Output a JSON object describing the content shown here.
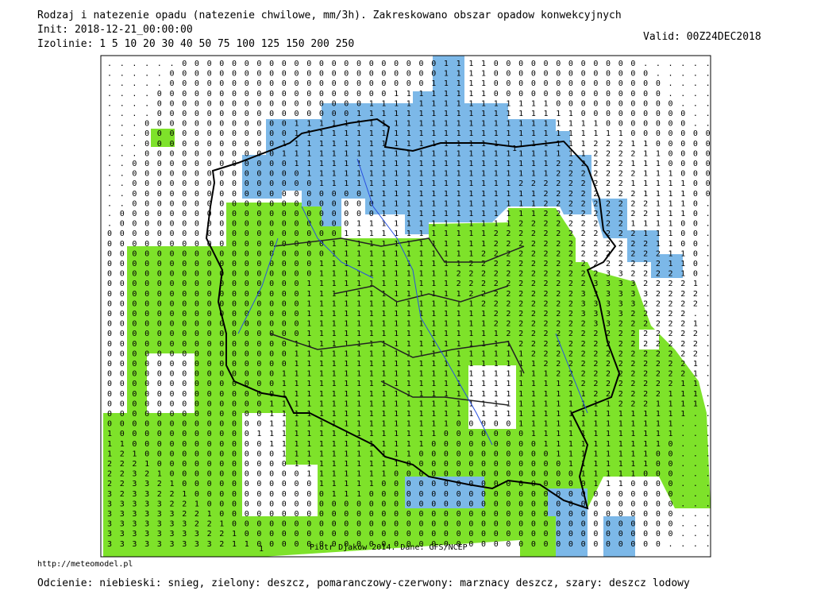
{
  "header": {
    "title": "Rodzaj i natezenie opadu (natezenie chwilowe, mm/3h). Zakreskowano obszar opadow konwekcyjnych",
    "init": "Init: 2018-12-21_00:00:00",
    "isolines": "Izolinie:  1 5 10 20 30 40 50 75 100 125 150 200 250",
    "valid": "Valid: 00Z24DEC2018"
  },
  "map": {
    "credit": "Piotr Djakow 2014. Dane: GFS/NCEP",
    "contour_labels": [
      "1",
      "1"
    ],
    "grid_rows": [
      "......0000000000000000000001111000000000000......",
      ".....000000000000000000000011110000000000000.....",
      ".....0000000000000000000001111100000000000000....",
      "....00000000000000000001111111100000000000000....",
      "....000000000000000001111111111111110000000000...",
      "....0000000000000000111111111111111111000000000..",
      "...00000000000011111111111111111111111110000000..",
      "...0000000000001111111111111111111111111110000000",
      "...0000000000011111111111111111111111112221100000",
      "...0000000000011111111111111111111111112222110000",
      "..00000000000001111111111111111111112222221110000",
      "..00000000000000111111111111111111112222222111000",
      "..00000000000000011111111111111112222222221111100",
      "..00000000000000000001111111111111122222222111100",
      "..0000000000000000000011111111111112222222221110.",
      ".00000000000000000000011111111111112222222221110.",
      ".00000000000000000001111111111111222222222111100.",
      "000000000000000000011111111111122222222222211100.",
      "000000000000000000111111111111122222222222221100.",
      "000000000000000000111111111111222222222222222110.",
      "000000000000000001111111111112222222222222222110.",
      "000000000000000001111111111122222222222233222210.",
      "000000000000000011111111111122222222222333322221.",
      "000000000000000011111111111112222222223333332222.",
      "000000000000000011111111111111222222223333322222.",
      "00000000000000001111111111111112222222333322222..",
      "000000000000000011111111111111122222222332222221.",
      "000000000000000011111111111111112222222222222222.",
      "000000000000000111111111111111111222222222222222.",
      "000000000000000111111111111111111122222222222222.",
      "000000000000000111111111111111111112222222222221.",
      "000000000000001111111111111111111111222222222221.",
      "000000000000001111111111111111111111122222222211.",
      "000000000000001111111111111111111111111222222111.",
      "000000000000011111111111111111111111111112221111.",
      "00000000000001111111111111111111111111111111111..",
      "0000000000000111111111111111000001111111111111...",
      "1000000000001111111111111110000000111111111111...",
      "1100000000000111111111111100000000011111111110...",
      "1210000000000011111111111000000000001111111100...",
      "2221000000000001111111110000000000000111111100...",
      "2232100000000000111111100000000000000011111000...",
      "2233210000000000011111000000000000000001110000...",
      "3233221000000000001110000000000000000000000000...",
      "3333322100000000000000000000000000000000000000...",
      "3333332210000000000000000000000000000000000000...",
      "3333333221000000000000000000000000000000000000...",
      "3333333322100000000000000000000000000000000000...",
      "333333333211000000000000000000000000000000000...."
    ]
  },
  "footer": {
    "url": "http://meteomodel.pl",
    "legend": "Odcienie: niebieski: snieg, zielony: deszcz, pomaranczowy-czerwony: marznacy deszcz, szary: deszcz lodowy"
  }
}
